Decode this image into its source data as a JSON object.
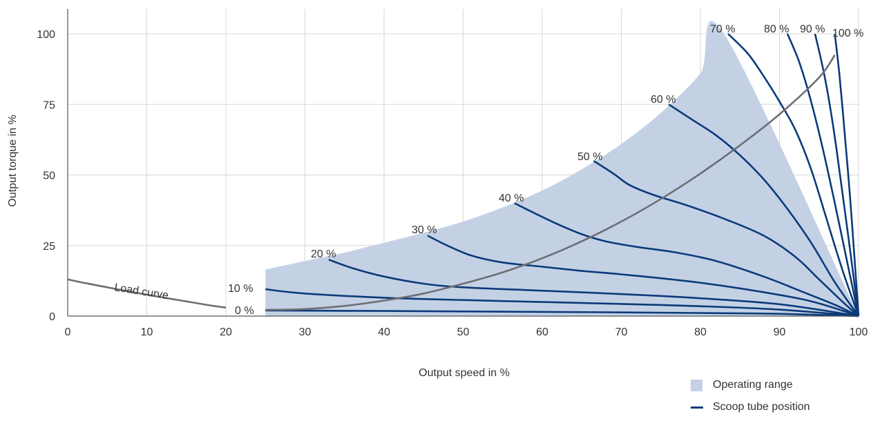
{
  "chart_data": {
    "type": "line",
    "xlabel": "Output speed in %",
    "ylabel": "Output torque in %",
    "xlim": [
      0,
      100
    ],
    "ylim": [
      0,
      110
    ],
    "x_ticks": [
      0,
      10,
      20,
      30,
      40,
      50,
      60,
      70,
      80,
      90,
      100
    ],
    "y_ticks": [
      0,
      25,
      50,
      75,
      100
    ],
    "grid": "vertical",
    "colors": {
      "operating_range": "#c4d1e5",
      "scoop_tube": "#0b3a7a",
      "load_curve": "#6e6e73",
      "grid": "#d7d7d7",
      "axis": "#555555"
    },
    "operating_range": {
      "name": "Operating range",
      "boundary": [
        [
          25,
          16.5
        ],
        [
          30,
          19.5
        ],
        [
          35,
          22.5
        ],
        [
          40,
          26
        ],
        [
          45,
          29.5
        ],
        [
          50,
          33.5
        ],
        [
          55,
          38.5
        ],
        [
          60,
          44.5
        ],
        [
          65,
          52
        ],
        [
          70,
          61
        ],
        [
          75,
          72
        ],
        [
          80,
          86
        ],
        [
          83,
          100
        ],
        [
          100,
          100
        ],
        [
          100,
          0
        ]
      ]
    },
    "load_curve": {
      "label": "Load curve",
      "points": [
        [
          0,
          13
        ],
        [
          2,
          11.8
        ],
        [
          5,
          10.2
        ],
        [
          8,
          8.6
        ],
        [
          10,
          7.6
        ],
        [
          12,
          6.6
        ],
        [
          15,
          5.2
        ],
        [
          18,
          3.8
        ],
        [
          20,
          3
        ],
        [
          25,
          2.2
        ],
        [
          30,
          2.5
        ],
        [
          35,
          3.6
        ],
        [
          40,
          5.5
        ],
        [
          45,
          8
        ],
        [
          50,
          11.5
        ],
        [
          55,
          15.5
        ],
        [
          60,
          20.5
        ],
        [
          65,
          26.5
        ],
        [
          70,
          33.5
        ],
        [
          75,
          41.5
        ],
        [
          80,
          50.5
        ],
        [
          85,
          60.5
        ],
        [
          90,
          71.5
        ],
        [
          95,
          84.5
        ],
        [
          97,
          92.5
        ]
      ]
    },
    "series": [
      {
        "label": "0 %",
        "points": [
          [
            25,
            2
          ],
          [
            40,
            1.8
          ],
          [
            60,
            1.5
          ],
          [
            80,
            1.1
          ],
          [
            90,
            0.8
          ],
          [
            100,
            0
          ]
        ]
      },
      {
        "label": "10 %",
        "points": [
          [
            25,
            9.5
          ],
          [
            30,
            8
          ],
          [
            40,
            6.5
          ],
          [
            50,
            5.7
          ],
          [
            60,
            5
          ],
          [
            70,
            4.3
          ],
          [
            80,
            3.5
          ],
          [
            90,
            2.3
          ],
          [
            100,
            0
          ]
        ]
      },
      {
        "label": "20 %",
        "points": [
          [
            33,
            20
          ],
          [
            36,
            17
          ],
          [
            40,
            14
          ],
          [
            45,
            11.5
          ],
          [
            50,
            10.2
          ],
          [
            60,
            9
          ],
          [
            70,
            7.8
          ],
          [
            80,
            6.3
          ],
          [
            90,
            4.2
          ],
          [
            100,
            0
          ]
        ]
      },
      {
        "label": "30 %",
        "points": [
          [
            45.5,
            28.5
          ],
          [
            48,
            25
          ],
          [
            51,
            21.5
          ],
          [
            55,
            19
          ],
          [
            60,
            17.5
          ],
          [
            65,
            16
          ],
          [
            70,
            14.8
          ],
          [
            80,
            11.8
          ],
          [
            90,
            7.5
          ],
          [
            95,
            4.5
          ],
          [
            100,
            0
          ]
        ]
      },
      {
        "label": "40 %",
        "points": [
          [
            56.5,
            40
          ],
          [
            59,
            36.5
          ],
          [
            62,
            32.5
          ],
          [
            65,
            29
          ],
          [
            68,
            26.5
          ],
          [
            72,
            24.5
          ],
          [
            77,
            22.5
          ],
          [
            82,
            19.5
          ],
          [
            88,
            14
          ],
          [
            93,
            8.5
          ],
          [
            97,
            4
          ],
          [
            100,
            0
          ]
        ]
      },
      {
        "label": "50 %",
        "points": [
          [
            66.5,
            55
          ],
          [
            69,
            50.5
          ],
          [
            71,
            46.5
          ],
          [
            74,
            43
          ],
          [
            78,
            39.5
          ],
          [
            83,
            34.5
          ],
          [
            88,
            28.5
          ],
          [
            92,
            21
          ],
          [
            95,
            13
          ],
          [
            98,
            5
          ],
          [
            100,
            0
          ]
        ]
      },
      {
        "label": "60 %",
        "points": [
          [
            76,
            75
          ],
          [
            79,
            69.5
          ],
          [
            82,
            64
          ],
          [
            85,
            57
          ],
          [
            88,
            48.5
          ],
          [
            91,
            38
          ],
          [
            94,
            26
          ],
          [
            97,
            12
          ],
          [
            100,
            0
          ]
        ]
      },
      {
        "label": "70 %",
        "points": [
          [
            83.5,
            100
          ],
          [
            86,
            93
          ],
          [
            88,
            85
          ],
          [
            90,
            76
          ],
          [
            92,
            66
          ],
          [
            94,
            52
          ],
          [
            96,
            34
          ],
          [
            98,
            16
          ],
          [
            100,
            0
          ]
        ]
      },
      {
        "label": "80 %",
        "points": [
          [
            91,
            100
          ],
          [
            92.5,
            90
          ],
          [
            94,
            76
          ],
          [
            95.5,
            59
          ],
          [
            97,
            40
          ],
          [
            98.5,
            20
          ],
          [
            100,
            0
          ]
        ]
      },
      {
        "label": "90 %",
        "points": [
          [
            94.5,
            100
          ],
          [
            95.7,
            85
          ],
          [
            96.8,
            67
          ],
          [
            97.8,
            47
          ],
          [
            98.9,
            24
          ],
          [
            100,
            0
          ]
        ]
      },
      {
        "label": "100 %",
        "points": [
          [
            97,
            100
          ],
          [
            97.6,
            85
          ],
          [
            98.3,
            63
          ],
          [
            98.9,
            43
          ],
          [
            99.5,
            20
          ],
          [
            100,
            0
          ]
        ]
      }
    ],
    "legend": {
      "position": "bottom-right",
      "entries": [
        {
          "key": "area",
          "label": "Operating range"
        },
        {
          "key": "line",
          "label": "Scoop tube position"
        }
      ]
    }
  }
}
